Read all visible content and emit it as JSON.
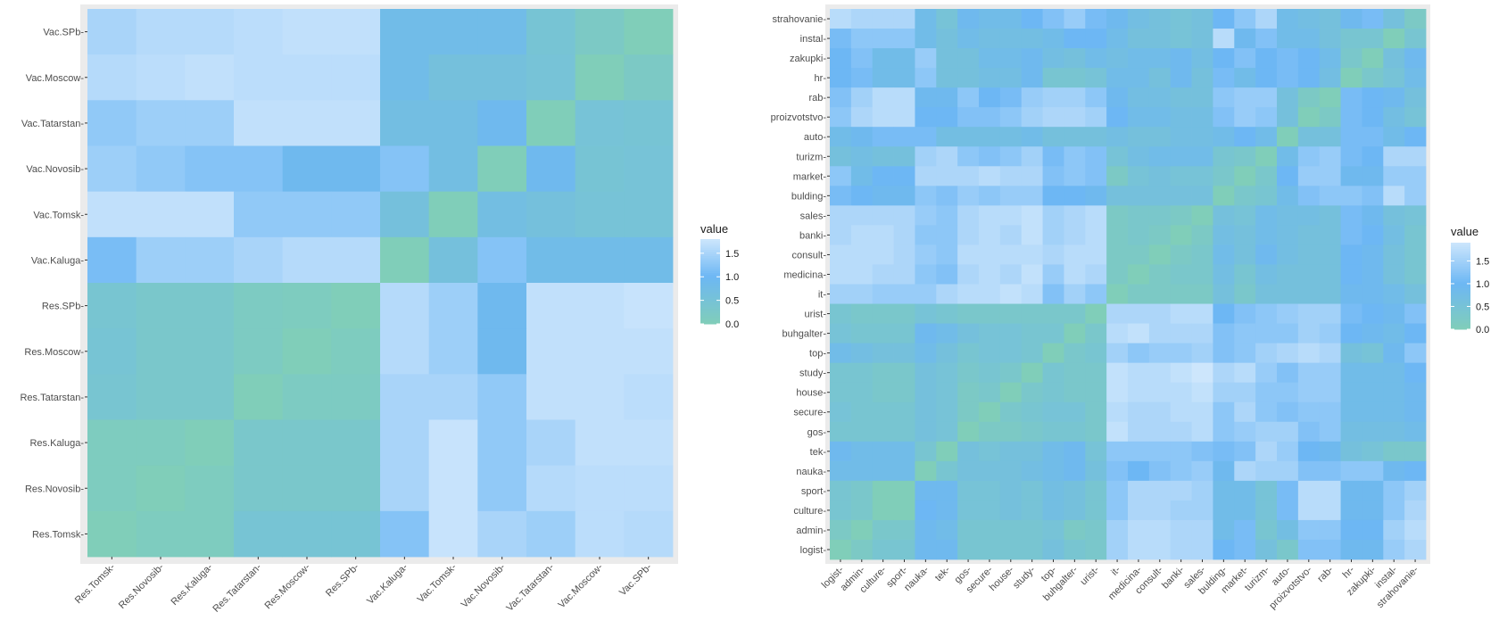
{
  "chart_data": [
    {
      "type": "heatmap",
      "legend": {
        "title": "value",
        "ticks": [
          0.0,
          0.5,
          1.0,
          1.5
        ],
        "tick_labels": [
          "0.0",
          "0.5",
          "1.0",
          "1.5"
        ],
        "range": [
          0,
          1.8
        ],
        "position": "right"
      },
      "colors": {
        "low": "#80CEB9",
        "mid": "#6DB7F4",
        "high": "#CDE6FC"
      },
      "rows": [
        "Vac.SPb",
        "Vac.Moscow",
        "Vac.Tatarstan",
        "Vac.Novosib",
        "Vac.Tomsk",
        "Vac.Kaluga",
        "Res.SPb",
        "Res.Moscow",
        "Res.Tatarstan",
        "Res.Kaluga",
        "Res.Novosib",
        "Res.Tomsk"
      ],
      "row_labels": [
        "Vac.SPb-",
        "Vac.Moscow-",
        "Vac.Tatarstan-",
        "Vac.Novosib-",
        "Vac.Tomsk-",
        "Vac.Kaluga-",
        "Res.SPb-",
        "Res.Moscow-",
        "Res.Tatarstan-",
        "Res.Kaluga-",
        "Res.Novosib-",
        "Res.Tomsk-"
      ],
      "columns": [
        "Res.Tomsk",
        "Res.Novosib",
        "Res.Kaluga",
        "Res.Tatarstan",
        "Res.Moscow",
        "Res.SPb",
        "Vac.Kaluga",
        "Vac.Tomsk",
        "Vac.Novosib",
        "Vac.Tatarstan",
        "Vac.Moscow",
        "Vac.SPb"
      ],
      "column_labels": [
        "Res.Tomsk-",
        "Res.Novosib-",
        "Res.Kaluga-",
        "Res.Tatarstan-",
        "Res.Moscow-",
        "Res.SPb-",
        "Vac.Kaluga-",
        "Vac.Tomsk-",
        "Vac.Novosib-",
        "Vac.Tatarstan-",
        "Vac.Moscow-",
        "Vac.SPb-"
      ],
      "values": [
        [
          1.5,
          1.6,
          1.6,
          1.65,
          1.7,
          1.7,
          0.8,
          0.8,
          0.8,
          0.45,
          0.2,
          0.0
        ],
        [
          1.6,
          1.65,
          1.7,
          1.65,
          1.65,
          1.65,
          0.8,
          0.6,
          0.6,
          0.5,
          0.0,
          0.2
        ],
        [
          1.3,
          1.4,
          1.4,
          1.7,
          1.7,
          1.7,
          0.7,
          0.7,
          0.9,
          0.0,
          0.5,
          0.45
        ],
        [
          1.4,
          1.3,
          1.2,
          1.2,
          0.9,
          0.9,
          1.2,
          0.7,
          0.0,
          0.9,
          0.45,
          0.5
        ],
        [
          1.7,
          1.7,
          1.7,
          1.3,
          1.3,
          1.3,
          0.6,
          0.0,
          0.7,
          0.6,
          0.5,
          0.5
        ],
        [
          1.1,
          1.4,
          1.4,
          1.5,
          1.6,
          1.6,
          0.0,
          0.6,
          1.2,
          0.8,
          0.8,
          0.8
        ],
        [
          0.4,
          0.3,
          0.3,
          0.15,
          0.1,
          0.0,
          1.6,
          1.4,
          0.9,
          1.7,
          1.7,
          1.75
        ],
        [
          0.45,
          0.3,
          0.3,
          0.15,
          0.0,
          0.1,
          1.6,
          1.4,
          0.9,
          1.7,
          1.7,
          1.7
        ],
        [
          0.4,
          0.3,
          0.3,
          0.0,
          0.15,
          0.15,
          1.5,
          1.5,
          1.3,
          1.7,
          1.7,
          1.65
        ],
        [
          0.1,
          0.1,
          0.0,
          0.3,
          0.3,
          0.3,
          1.5,
          1.75,
          1.3,
          1.5,
          1.7,
          1.7
        ],
        [
          0.1,
          0.0,
          0.1,
          0.3,
          0.3,
          0.3,
          1.5,
          1.75,
          1.3,
          1.6,
          1.65,
          1.65
        ],
        [
          0.0,
          0.1,
          0.1,
          0.45,
          0.45,
          0.45,
          1.2,
          1.75,
          1.5,
          1.4,
          1.65,
          1.6
        ]
      ]
    },
    {
      "type": "heatmap",
      "legend": {
        "title": "value",
        "ticks": [
          0.0,
          0.5,
          1.0,
          1.5
        ],
        "tick_labels": [
          "0.0",
          "0.5",
          "1.0",
          "1.5"
        ],
        "range": [
          0,
          1.9
        ],
        "position": "right"
      },
      "colors": {
        "low": "#80CEB9",
        "mid": "#6DB7F4",
        "high": "#CDE6FC"
      },
      "rows": [
        "strahovanie",
        "instal",
        "zakupki",
        "hr",
        "rab",
        "proizvotstvo",
        "auto",
        "turizm",
        "market",
        "bulding",
        "sales",
        "banki",
        "consult",
        "medicina",
        "it",
        "urist",
        "buhgalter",
        "top",
        "study",
        "house",
        "secure",
        "gos",
        "tek",
        "nauka",
        "sport",
        "culture",
        "admin",
        "logist"
      ],
      "row_labels": [
        "strahovanie-",
        "instal-",
        "zakupki-",
        "hr-",
        "rab-",
        "proizvotstvo-",
        "auto-",
        "turizm-",
        "market-",
        "bulding-",
        "sales-",
        "banki-",
        "consult-",
        "medicina-",
        "it-",
        "urist-",
        "buhgalter-",
        "top-",
        "study-",
        "house-",
        "secure-",
        "gos-",
        "tek-",
        "nauka-",
        "sport-",
        "culture-",
        "admin-",
        "logist-"
      ],
      "columns": [
        "logist",
        "admin",
        "culture",
        "sport",
        "nauka",
        "tek",
        "gos",
        "secure",
        "house",
        "study",
        "top",
        "buhgalter",
        "urist",
        "it",
        "medicina",
        "consult",
        "banki",
        "sales",
        "bulding",
        "market",
        "turizm",
        "auto",
        "proizvotstvo",
        "rab",
        "hr",
        "zakupki",
        "instal",
        "strahovanie"
      ],
      "column_labels": [
        "logist-",
        "admin-",
        "culture-",
        "sport-",
        "nauka-",
        "tek-",
        "gos-",
        "secure-",
        "house-",
        "study-",
        "top-",
        "buhgalter-",
        "urist-",
        "it-",
        "medicina-",
        "consult-",
        "banki-",
        "sales-",
        "bulding-",
        "market-",
        "turizm-",
        "auto-",
        "proizvotstvo-",
        "rab-",
        "hr-",
        "zakupki-",
        "instal-",
        "strahovanie-"
      ],
      "values": [
        [
          1.7,
          1.6,
          1.6,
          1.6,
          0.8,
          0.5,
          0.9,
          0.8,
          0.8,
          1.0,
          1.2,
          1.4,
          1.1,
          0.9,
          0.7,
          0.6,
          0.5,
          0.6,
          1.0,
          1.3,
          1.6,
          0.8,
          0.7,
          0.6,
          0.9,
          1.1,
          0.6,
          0.2
        ],
        [
          1.1,
          1.3,
          1.3,
          1.3,
          0.8,
          0.6,
          0.8,
          0.7,
          0.7,
          0.7,
          0.8,
          1.0,
          1.0,
          0.8,
          0.6,
          0.6,
          0.5,
          0.6,
          1.7,
          0.9,
          1.2,
          0.8,
          0.8,
          0.6,
          0.4,
          0.4,
          0.0,
          0.4
        ],
        [
          1.0,
          1.2,
          0.8,
          0.8,
          1.4,
          0.6,
          0.6,
          0.8,
          0.8,
          0.9,
          0.7,
          0.6,
          0.8,
          0.7,
          0.8,
          0.8,
          0.9,
          0.7,
          1.0,
          1.2,
          1.0,
          1.1,
          1.0,
          0.8,
          0.3,
          0.0,
          0.6,
          0.9
        ],
        [
          1.0,
          1.1,
          0.8,
          0.8,
          1.3,
          0.6,
          0.6,
          0.7,
          0.7,
          0.9,
          0.4,
          0.4,
          0.5,
          0.8,
          0.8,
          0.6,
          0.9,
          0.6,
          1.1,
          0.8,
          1.0,
          1.1,
          1.0,
          0.7,
          0.0,
          0.3,
          0.5,
          0.8
        ],
        [
          1.2,
          1.5,
          1.7,
          1.7,
          0.9,
          0.9,
          1.3,
          1.0,
          1.1,
          1.4,
          1.5,
          1.5,
          1.3,
          0.9,
          0.7,
          0.7,
          0.6,
          0.6,
          1.3,
          1.4,
          1.4,
          0.6,
          0.2,
          0.0,
          1.1,
          1.0,
          0.9,
          0.6
        ],
        [
          1.3,
          1.6,
          1.7,
          1.7,
          1.0,
          1.0,
          1.2,
          1.2,
          1.3,
          1.5,
          1.6,
          1.6,
          1.5,
          1.0,
          0.8,
          0.8,
          0.7,
          0.7,
          1.2,
          1.4,
          1.3,
          0.6,
          0.0,
          0.2,
          1.1,
          1.0,
          0.7,
          0.5
        ],
        [
          0.8,
          0.9,
          1.1,
          1.1,
          1.1,
          0.7,
          0.7,
          0.7,
          0.7,
          0.8,
          0.6,
          0.6,
          0.6,
          0.7,
          0.6,
          0.6,
          0.7,
          0.7,
          0.8,
          1.0,
          0.8,
          0.0,
          0.6,
          0.6,
          1.1,
          1.1,
          0.8,
          1.0
        ],
        [
          0.6,
          0.7,
          0.6,
          0.6,
          1.5,
          1.6,
          1.3,
          1.2,
          1.3,
          1.5,
          1.1,
          1.3,
          1.2,
          0.5,
          0.7,
          0.8,
          0.8,
          0.8,
          0.4,
          0.3,
          0.0,
          0.8,
          1.3,
          1.4,
          1.1,
          1.0,
          1.6,
          1.6
        ],
        [
          1.3,
          0.8,
          1.0,
          1.0,
          1.6,
          1.6,
          1.6,
          1.7,
          1.6,
          1.6,
          1.2,
          1.3,
          1.2,
          0.2,
          0.5,
          0.6,
          0.5,
          0.5,
          0.3,
          0.0,
          0.3,
          1.0,
          1.4,
          1.4,
          0.9,
          0.9,
          1.4,
          1.4
        ],
        [
          1.1,
          1.0,
          0.9,
          0.9,
          1.3,
          1.2,
          1.4,
          1.3,
          1.4,
          1.4,
          1.0,
          1.0,
          0.9,
          0.6,
          0.6,
          0.6,
          0.6,
          0.6,
          0.0,
          0.3,
          0.4,
          0.8,
          1.2,
          1.3,
          1.3,
          1.2,
          1.7,
          1.4
        ],
        [
          1.6,
          1.6,
          1.6,
          1.6,
          1.4,
          1.3,
          1.6,
          1.7,
          1.7,
          1.8,
          1.5,
          1.6,
          1.7,
          0.2,
          0.3,
          0.3,
          0.2,
          0.0,
          0.6,
          0.5,
          0.8,
          0.7,
          0.7,
          0.6,
          1.1,
          0.9,
          0.6,
          0.5
        ],
        [
          1.6,
          1.7,
          1.7,
          1.6,
          1.3,
          1.3,
          1.6,
          1.7,
          1.6,
          1.8,
          1.5,
          1.6,
          1.7,
          0.2,
          0.3,
          0.2,
          0.0,
          0.2,
          0.7,
          0.6,
          0.8,
          0.7,
          0.6,
          0.6,
          1.1,
          1.0,
          0.7,
          0.4
        ],
        [
          1.7,
          1.7,
          1.7,
          1.6,
          1.4,
          1.3,
          1.7,
          1.7,
          1.7,
          1.7,
          1.6,
          1.7,
          1.7,
          0.2,
          0.2,
          0.0,
          0.2,
          0.3,
          0.8,
          0.6,
          0.9,
          0.7,
          0.6,
          0.6,
          1.0,
          0.9,
          0.6,
          0.4
        ],
        [
          1.7,
          1.7,
          1.6,
          1.6,
          1.3,
          1.2,
          1.6,
          1.7,
          1.6,
          1.8,
          1.4,
          1.7,
          1.6,
          0.2,
          0.0,
          0.2,
          0.3,
          0.3,
          0.7,
          0.4,
          0.7,
          0.6,
          0.6,
          0.6,
          1.0,
          0.9,
          0.6,
          0.4
        ],
        [
          1.5,
          1.5,
          1.4,
          1.4,
          1.4,
          1.6,
          1.7,
          1.7,
          1.8,
          1.7,
          1.2,
          1.5,
          1.3,
          0.0,
          0.2,
          0.2,
          0.2,
          0.2,
          0.6,
          0.3,
          0.6,
          0.6,
          0.6,
          0.6,
          0.9,
          0.9,
          0.8,
          0.6
        ],
        [
          0.4,
          0.3,
          0.3,
          0.3,
          0.5,
          0.4,
          0.3,
          0.3,
          0.3,
          0.3,
          0.3,
          0.3,
          0.0,
          1.6,
          1.6,
          1.6,
          1.7,
          1.7,
          1.0,
          1.2,
          1.3,
          1.4,
          1.5,
          1.5,
          1.1,
          1.0,
          0.9,
          1.2
        ],
        [
          0.5,
          0.4,
          0.4,
          0.4,
          0.9,
          0.8,
          0.6,
          0.5,
          0.5,
          0.4,
          0.4,
          0.0,
          0.3,
          1.7,
          1.8,
          1.6,
          1.6,
          1.6,
          1.2,
          1.3,
          1.3,
          1.3,
          1.5,
          1.4,
          1.0,
          0.9,
          0.8,
          1.0
        ],
        [
          0.8,
          0.7,
          0.6,
          0.6,
          0.8,
          0.6,
          0.4,
          0.5,
          0.5,
          0.4,
          0.0,
          0.3,
          0.4,
          1.5,
          1.3,
          1.4,
          1.4,
          1.5,
          1.2,
          1.3,
          1.5,
          1.6,
          1.7,
          1.6,
          0.6,
          0.5,
          0.9,
          1.3
        ],
        [
          0.4,
          0.4,
          0.3,
          0.3,
          0.6,
          0.5,
          0.3,
          0.4,
          0.3,
          0.0,
          0.4,
          0.3,
          0.3,
          1.8,
          1.7,
          1.7,
          1.8,
          1.9,
          1.6,
          1.7,
          1.4,
          1.2,
          1.4,
          1.4,
          0.8,
          0.8,
          0.8,
          1.0
        ],
        [
          0.4,
          0.4,
          0.3,
          0.3,
          0.6,
          0.5,
          0.2,
          0.3,
          0.0,
          0.3,
          0.4,
          0.3,
          0.3,
          1.8,
          1.7,
          1.7,
          1.7,
          1.8,
          1.5,
          1.5,
          1.3,
          1.3,
          1.4,
          1.4,
          0.8,
          0.8,
          0.8,
          0.9
        ],
        [
          0.5,
          0.4,
          0.4,
          0.4,
          0.6,
          0.5,
          0.2,
          0.0,
          0.3,
          0.4,
          0.5,
          0.5,
          0.3,
          1.7,
          1.6,
          1.6,
          1.7,
          1.7,
          1.3,
          1.6,
          1.3,
          1.2,
          1.3,
          1.3,
          0.8,
          0.8,
          0.8,
          0.9
        ],
        [
          0.4,
          0.4,
          0.4,
          0.4,
          0.6,
          0.5,
          0.0,
          0.2,
          0.2,
          0.3,
          0.4,
          0.4,
          0.3,
          1.8,
          1.6,
          1.6,
          1.6,
          1.7,
          1.3,
          1.4,
          1.5,
          1.5,
          1.2,
          1.3,
          0.7,
          0.7,
          0.7,
          0.8
        ],
        [
          0.9,
          0.8,
          0.8,
          0.8,
          0.4,
          0.0,
          0.6,
          0.5,
          0.6,
          0.6,
          0.8,
          0.9,
          0.5,
          1.3,
          1.3,
          1.3,
          1.3,
          1.2,
          1.1,
          1.2,
          1.6,
          1.4,
          1.0,
          0.9,
          0.6,
          0.5,
          0.3,
          0.3
        ],
        [
          0.8,
          0.8,
          0.8,
          0.8,
          0.0,
          0.4,
          0.6,
          0.6,
          0.6,
          0.7,
          0.8,
          0.9,
          0.6,
          1.2,
          1.0,
          1.2,
          1.3,
          1.4,
          0.9,
          1.6,
          1.5,
          1.5,
          1.2,
          1.2,
          1.3,
          1.3,
          0.9,
          1.0
        ],
        [
          0.4,
          0.3,
          0.0,
          0.0,
          0.9,
          0.9,
          0.5,
          0.5,
          0.6,
          0.5,
          0.7,
          0.6,
          0.4,
          1.3,
          1.6,
          1.6,
          1.6,
          1.5,
          0.8,
          0.8,
          0.5,
          1.1,
          1.7,
          1.7,
          0.9,
          0.9,
          1.3,
          1.5
        ],
        [
          0.4,
          0.3,
          0.0,
          0.0,
          1.0,
          0.9,
          0.5,
          0.5,
          0.6,
          0.5,
          0.7,
          0.6,
          0.4,
          1.3,
          1.6,
          1.6,
          1.5,
          1.5,
          0.8,
          0.8,
          0.5,
          1.1,
          1.7,
          1.7,
          0.9,
          0.9,
          1.3,
          1.6
        ],
        [
          0.2,
          0.0,
          0.3,
          0.3,
          0.9,
          0.8,
          0.4,
          0.4,
          0.4,
          0.4,
          0.5,
          0.2,
          0.3,
          1.5,
          1.7,
          1.7,
          1.6,
          1.6,
          0.8,
          1.1,
          0.4,
          0.7,
          1.3,
          1.3,
          1.0,
          1.0,
          1.5,
          1.7
        ],
        [
          0.0,
          0.2,
          0.4,
          0.4,
          0.9,
          0.9,
          0.4,
          0.4,
          0.4,
          0.4,
          0.6,
          0.4,
          0.3,
          1.5,
          1.7,
          1.7,
          1.6,
          1.6,
          1.0,
          1.1,
          0.6,
          0.3,
          1.2,
          1.2,
          0.9,
          0.9,
          1.4,
          1.6
        ]
      ]
    }
  ]
}
